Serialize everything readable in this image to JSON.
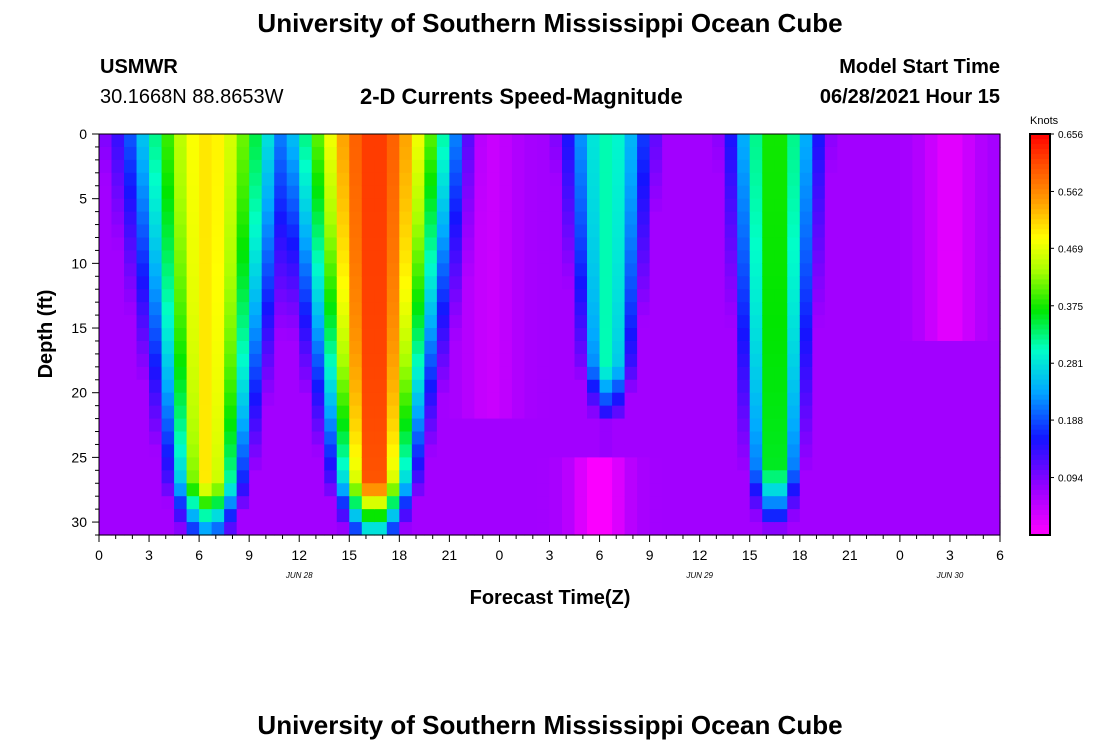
{
  "page": {
    "title_top": "University of Southern Mississippi Ocean Cube",
    "title_bottom": "University of Southern Mississippi Ocean Cube",
    "station": "USMWR",
    "location": "30.1668N  88.8653W",
    "subtitle": "2-D Currents Speed-Magnitude",
    "model_label": "Model Start Time",
    "model_time": "06/28/2021 Hour 15"
  },
  "chart_data": {
    "type": "heatmap",
    "xlabel": "Forecast Time(Z)",
    "ylabel": "Depth (ft)",
    "ylim": [
      0,
      31
    ],
    "y_inverted": true,
    "x_hours_range": [
      0,
      54
    ],
    "x_ticks": [
      {
        "h": 0,
        "label": "0"
      },
      {
        "h": 3,
        "label": "3"
      },
      {
        "h": 6,
        "label": "6"
      },
      {
        "h": 9,
        "label": "9"
      },
      {
        "h": 12,
        "label": "12"
      },
      {
        "h": 15,
        "label": "15"
      },
      {
        "h": 18,
        "label": "18"
      },
      {
        "h": 21,
        "label": "21"
      },
      {
        "h": 24,
        "label": "0"
      },
      {
        "h": 27,
        "label": "3"
      },
      {
        "h": 30,
        "label": "6"
      },
      {
        "h": 33,
        "label": "9"
      },
      {
        "h": 36,
        "label": "12"
      },
      {
        "h": 39,
        "label": "15"
      },
      {
        "h": 42,
        "label": "18"
      },
      {
        "h": 45,
        "label": "21"
      },
      {
        "h": 48,
        "label": "0"
      },
      {
        "h": 51,
        "label": "3"
      },
      {
        "h": 54,
        "label": "6"
      }
    ],
    "date_labels": [
      {
        "h": 12,
        "label": "JUN 28"
      },
      {
        "h": 36,
        "label": "JUN 29"
      },
      {
        "h": 51,
        "label": "JUN 30"
      }
    ],
    "y_ticks": [
      0,
      5,
      10,
      15,
      20,
      25,
      30
    ],
    "colorbar": {
      "unit": "Knots",
      "min": 0.0,
      "max": 0.656,
      "tick_values": [
        0.094,
        0.188,
        0.281,
        0.375,
        0.469,
        0.562,
        0.656
      ],
      "tick_labels": [
        "0.094",
        "0.188",
        "0.281",
        "0.375",
        "0.469",
        "0.562",
        "0.656"
      ]
    },
    "features": [
      {
        "name": "pulse-1",
        "center_h": 6.5,
        "top_width_h": 6.0,
        "bottom_width_h": 2.0,
        "peak": 0.5,
        "depth_end": 31
      },
      {
        "name": "pulse-2",
        "center_h": 16.5,
        "top_width_h": 6.5,
        "bottom_width_h": 2.0,
        "peak": 0.62,
        "depth_end": 31
      },
      {
        "name": "pulse-3",
        "center_h": 30.5,
        "top_width_h": 3.6,
        "bottom_width_h": 1.5,
        "peak": 0.31,
        "depth_end": 22
      },
      {
        "name": "pulse-4",
        "center_h": 40.5,
        "top_width_h": 3.5,
        "bottom_width_h": 1.6,
        "peak": 0.38,
        "depth_end": 30
      },
      {
        "name": "low-core-1",
        "center_h": 23.5,
        "depth_range": [
          0,
          22
        ],
        "value": 0.04
      },
      {
        "name": "low-core-2",
        "center_h": 30.0,
        "depth_range": [
          25,
          31
        ],
        "value": 0.0
      },
      {
        "name": "low-core-3",
        "center_h": 51.0,
        "depth_range": [
          0,
          16
        ],
        "value": 0.02
      }
    ]
  }
}
